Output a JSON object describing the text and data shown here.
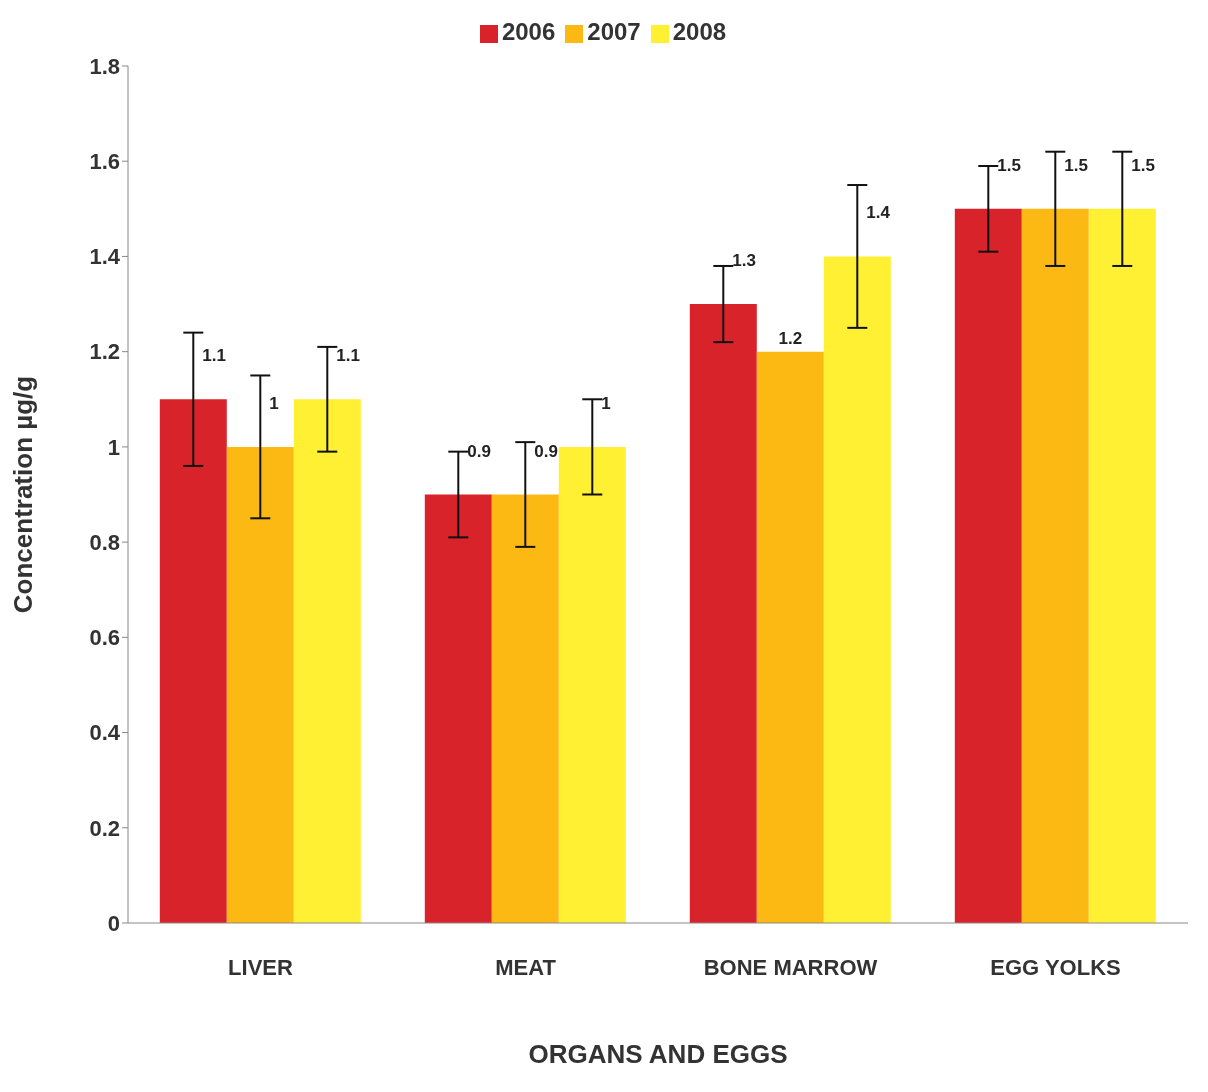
{
  "chart_data": {
    "type": "bar",
    "xlabel": "ORGANS AND EGGS",
    "ylabel": "Concentration µg/g",
    "categories": [
      "LIVER",
      "MEAT",
      "BONE MARROW",
      "EGG YOLKS"
    ],
    "series": [
      {
        "name": "2006",
        "color": "#d9232a",
        "values": [
          1.1,
          0.9,
          1.3,
          1.5
        ],
        "errors": [
          0.14,
          0.09,
          0.08,
          0.09
        ]
      },
      {
        "name": "2007",
        "color": "#fdb913",
        "values": [
          1,
          0.9,
          1.2,
          1.5
        ],
        "errors": [
          0.15,
          0.11,
          null,
          0.12
        ]
      },
      {
        "name": "2008",
        "color": "#fff033",
        "values": [
          1.1,
          1,
          1.4,
          1.5
        ],
        "errors": [
          0.11,
          0.1,
          0.15,
          0.12
        ]
      }
    ],
    "ylim": [
      0,
      1.8
    ],
    "yticks": [
      0,
      0.2,
      0.4,
      0.6,
      0.8,
      1,
      1.2,
      1.4,
      1.6,
      1.8
    ],
    "data_labels": true,
    "legend": "top",
    "grid": false
  }
}
